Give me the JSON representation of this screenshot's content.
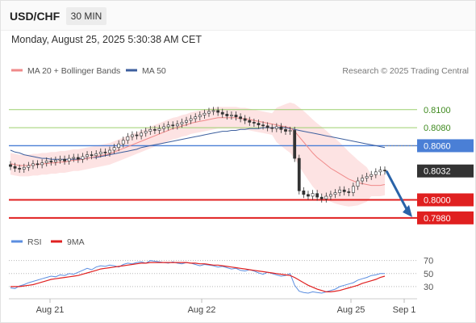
{
  "header": {
    "symbol": "USD/CHF",
    "timeframe": "30 MIN",
    "datetime": "Monday, August 25, 2025 5:30:38 AM CET"
  },
  "legend": {
    "ma20": "MA 20 + Bollinger Bands",
    "ma50": "MA 50",
    "copyright": "Research © 2025 Trading Central",
    "rsi": "RSI",
    "rsi_ma": "9MA"
  },
  "colors": {
    "ma20": "#f08a8a",
    "ma50": "#3d5f9e",
    "bollinger_fill": "#fde3e3",
    "resistance": "#9ccf6e",
    "support": "#e02020",
    "pivot": "#4a7fd6",
    "current": "#333333",
    "arrow": "#2a63a8",
    "rsi": "#5b8ee0",
    "rsi_ma": "#e02020"
  },
  "chart_data": [
    {
      "type": "candlestick",
      "title": "USD/CHF",
      "timeframe": "30 MIN",
      "x_ticks": [
        "Aug 21",
        "Aug 22",
        "Aug 25",
        "Sep 1"
      ],
      "ylim": [
        0.797,
        0.8115
      ],
      "price_levels": [
        {
          "label": "0.8100",
          "value": 0.81,
          "kind": "resistance"
        },
        {
          "label": "0.8080",
          "value": 0.808,
          "kind": "resistance"
        },
        {
          "label": "0.8060",
          "value": 0.806,
          "kind": "pivot"
        },
        {
          "label": "0.8032",
          "value": 0.8032,
          "kind": "current"
        },
        {
          "label": "0.8000",
          "value": 0.8,
          "kind": "support"
        },
        {
          "label": "0.7980",
          "value": 0.798,
          "kind": "support"
        }
      ],
      "forecast_arrow": {
        "from": 0.8032,
        "to": 0.798
      },
      "close_series": [
        0.8037,
        0.8035,
        0.8034,
        0.8036,
        0.8038,
        0.804,
        0.8039,
        0.8041,
        0.8043,
        0.8042,
        0.8044,
        0.8045,
        0.8043,
        0.8046,
        0.8047,
        0.8045,
        0.8048,
        0.805,
        0.8049,
        0.8051,
        0.8053,
        0.8052,
        0.8055,
        0.8058,
        0.8062,
        0.8066,
        0.807,
        0.8072,
        0.8071,
        0.8074,
        0.8076,
        0.8078,
        0.8077,
        0.8079,
        0.8081,
        0.8083,
        0.8082,
        0.8084,
        0.8086,
        0.8088,
        0.809,
        0.8092,
        0.8094,
        0.8096,
        0.8098,
        0.8099,
        0.8097,
        0.8095,
        0.8093,
        0.8094,
        0.8092,
        0.809,
        0.8088,
        0.8086,
        0.8085,
        0.8083,
        0.8082,
        0.808,
        0.8079,
        0.8081,
        0.8078,
        0.8076,
        0.8077,
        0.8046,
        0.801,
        0.8006,
        0.8004,
        0.8007,
        0.8003,
        0.8001,
        0.8004,
        0.8006,
        0.8008,
        0.8011,
        0.8009,
        0.8008,
        0.8015,
        0.8021,
        0.8024,
        0.8026,
        0.8028,
        0.8031,
        0.8033,
        0.8032
      ],
      "ma20": [
        0.804,
        0.8039,
        0.8038,
        0.8038,
        0.8038,
        0.8039,
        0.8039,
        0.804,
        0.804,
        0.8041,
        0.8041,
        0.8042,
        0.8042,
        0.8043,
        0.8044,
        0.8044,
        0.8045,
        0.8046,
        0.8047,
        0.8048,
        0.8049,
        0.805,
        0.8051,
        0.8053,
        0.8055,
        0.8057,
        0.8059,
        0.8061,
        0.8063,
        0.8065,
        0.8067,
        0.8069,
        0.8071,
        0.8073,
        0.8075,
        0.8077,
        0.8079,
        0.808,
        0.8082,
        0.8083,
        0.8085,
        0.8086,
        0.8087,
        0.8088,
        0.8089,
        0.809,
        0.8091,
        0.8091,
        0.8091,
        0.8091,
        0.8091,
        0.809,
        0.809,
        0.8089,
        0.8088,
        0.8087,
        0.8086,
        0.8085,
        0.8084,
        0.8083,
        0.8082,
        0.8081,
        0.808,
        0.8076,
        0.807,
        0.8064,
        0.8058,
        0.8052,
        0.8047,
        0.8043,
        0.8039,
        0.8035,
        0.8032,
        0.8029,
        0.8026,
        0.8023,
        0.8021,
        0.8019,
        0.8018,
        0.8017,
        0.8016,
        0.8016,
        0.8016,
        0.8017
      ],
      "ma50": [
        0.8055,
        0.8053,
        0.8052,
        0.805,
        0.8049,
        0.8048,
        0.8047,
        0.8046,
        0.8046,
        0.8045,
        0.8045,
        0.8045,
        0.8045,
        0.8045,
        0.8045,
        0.8045,
        0.8046,
        0.8046,
        0.8047,
        0.8047,
        0.8048,
        0.8049,
        0.805,
        0.8051,
        0.8052,
        0.8053,
        0.8054,
        0.8055,
        0.8056,
        0.8058,
        0.8059,
        0.806,
        0.8061,
        0.8062,
        0.8063,
        0.8064,
        0.8065,
        0.8066,
        0.8067,
        0.8068,
        0.8069,
        0.807,
        0.8071,
        0.8072,
        0.8073,
        0.8074,
        0.8075,
        0.8076,
        0.8076,
        0.8077,
        0.8077,
        0.8078,
        0.8078,
        0.8079,
        0.8079,
        0.8079,
        0.808,
        0.808,
        0.808,
        0.808,
        0.808,
        0.808,
        0.8079,
        0.8078,
        0.8077,
        0.8076,
        0.8075,
        0.8074,
        0.8073,
        0.8072,
        0.8071,
        0.807,
        0.8069,
        0.8068,
        0.8067,
        0.8066,
        0.8065,
        0.8064,
        0.8063,
        0.8062,
        0.8061,
        0.806,
        0.8059,
        0.8058
      ]
    },
    {
      "type": "line",
      "title": "RSI",
      "yticks": [
        70,
        50,
        30
      ],
      "ylim": [
        15,
        82
      ],
      "series": [
        {
          "name": "RSI",
          "values": [
            28,
            27,
            31,
            33,
            36,
            38,
            40,
            42,
            44,
            46,
            45,
            48,
            47,
            50,
            49,
            52,
            55,
            58,
            56,
            60,
            62,
            61,
            63,
            62,
            60,
            64,
            66,
            65,
            67,
            68,
            66,
            70,
            69,
            68,
            67,
            66,
            68,
            66,
            65,
            67,
            66,
            64,
            62,
            64,
            63,
            62,
            60,
            61,
            59,
            57,
            58,
            55,
            54,
            56,
            54,
            51,
            49,
            52,
            50,
            48,
            46,
            47,
            50,
            32,
            23,
            21,
            20,
            22,
            21,
            20,
            22,
            24,
            26,
            30,
            32,
            34,
            36,
            40,
            42,
            44,
            47,
            48,
            50,
            50
          ]
        },
        {
          "name": "9MA",
          "values": [
            30,
            30,
            30,
            31,
            32,
            33,
            35,
            37,
            39,
            41,
            42,
            43,
            44,
            45,
            46,
            47,
            49,
            51,
            53,
            55,
            57,
            58,
            59,
            60,
            61,
            62,
            63,
            64,
            65,
            66,
            66,
            67,
            67,
            67,
            67,
            67,
            67,
            67,
            67,
            67,
            66,
            66,
            65,
            65,
            64,
            63,
            63,
            62,
            61,
            60,
            59,
            58,
            57,
            56,
            55,
            54,
            53,
            52,
            51,
            50,
            49,
            48,
            47,
            44,
            40,
            36,
            32,
            29,
            26,
            24,
            22,
            22,
            23,
            24,
            26,
            28,
            30,
            32,
            35,
            37,
            39,
            41,
            44,
            46
          ]
        }
      ]
    }
  ]
}
